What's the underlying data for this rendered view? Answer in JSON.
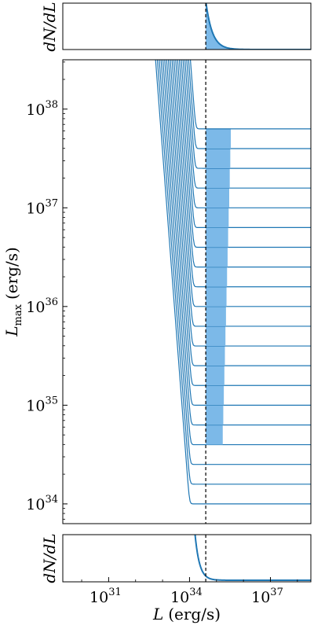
{
  "chart_data": [
    {
      "panel": "top",
      "type": "line",
      "ylabel": "dN/dL",
      "xscale": "log",
      "xlim_log10": [
        29.3,
        38.5
      ],
      "threshold_L": 4e+34,
      "series": [
        {
          "values_description_free": true,
          "x_log10": [
            34.6,
            34.9,
            35.2,
            35.6,
            36.0,
            36.5,
            37.0,
            37.5,
            38.0,
            38.5
          ],
          "y_norm": [
            1.0,
            0.55,
            0.3,
            0.15,
            0.08,
            0.04,
            0.02,
            0.01,
            0.005,
            0.0
          ]
        }
      ]
    },
    {
      "panel": "main",
      "type": "line",
      "xlabel": "",
      "ylabel": "L_max (erg/s)",
      "xscale": "log",
      "yscale": "log",
      "xlim_log10": [
        29.3,
        38.5
      ],
      "ylim_log10": [
        33.8,
        38.5
      ],
      "y_ticks": [
        {
          "exp": "34",
          "value_log10": 34
        },
        {
          "exp": "35",
          "value_log10": 35
        },
        {
          "exp": "36",
          "value_log10": 36
        },
        {
          "exp": "37",
          "value_log10": 37
        },
        {
          "exp": "38",
          "value_log10": 38
        }
      ],
      "threshold_L": 4e+34,
      "series_Lmax_log10": [
        34.0,
        34.2,
        34.4,
        34.6,
        34.8,
        35.0,
        35.2,
        35.4,
        35.6,
        35.8,
        36.0,
        36.2,
        36.4,
        36.6,
        36.8,
        37.0,
        37.2,
        37.4,
        37.6,
        37.8
      ],
      "grid": false
    },
    {
      "panel": "bottom",
      "type": "line",
      "xlabel": "L (erg/s)",
      "ylabel": "dN/dL",
      "xscale": "log",
      "xlim_log10": [
        29.3,
        38.5
      ],
      "x_ticks": [
        {
          "exp": "31",
          "value_log10": 31
        },
        {
          "exp": "34",
          "value_log10": 34
        },
        {
          "exp": "37",
          "value_log10": 37
        }
      ],
      "threshold_L": 4e+34
    }
  ],
  "labels": {
    "top_ylabel_main": "dN/dL",
    "main_ylabel_var": "L",
    "main_ylabel_sub": "max",
    "main_ylabel_unit": "(erg/s)",
    "bottom_ylabel_main": "dN/dL",
    "xlabel_var": "L",
    "xlabel_unit": "(erg/s)",
    "tick_base": "10"
  },
  "colors": {
    "line": "#1f77b4",
    "fill": "#7cb9e8",
    "threshold": "#000000"
  }
}
